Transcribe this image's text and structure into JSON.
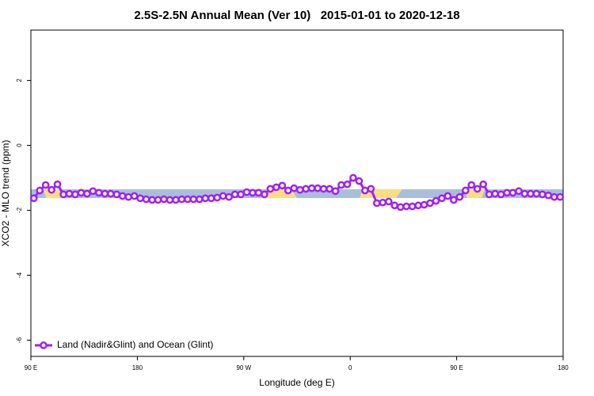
{
  "chart_data": {
    "type": "line",
    "title": "2.5S-2.5N Annual Mean (Ver 10)   2015-01-01 to 2020-12-18",
    "xlabel": "Longitude (deg E)",
    "ylabel": "XCO2 - MLO trend (ppm)",
    "xlim": [
      90,
      540
    ],
    "xticks": [
      {
        "value": 90,
        "label": "90 E"
      },
      180,
      {
        "value": 270,
        "label": "90 W"
      },
      {
        "value": 360,
        "label": "0"
      },
      {
        "value": 450,
        "label": "90 E"
      },
      {
        "value": 540,
        "label": "180"
      }
    ],
    "ylim": [
      -6.5,
      3.55
    ],
    "yticks": [
      -6,
      -4,
      -2,
      0,
      2
    ],
    "legend": "bottom-left",
    "x": [
      92.5,
      97.5,
      102.5,
      107.5,
      112.5,
      117.5,
      122.5,
      127.5,
      132.5,
      137.5,
      142.5,
      147.5,
      152.5,
      157.5,
      162.5,
      167.5,
      172.5,
      177.5,
      182.5,
      187.5,
      192.5,
      197.5,
      202.5,
      207.5,
      212.5,
      217.5,
      222.5,
      227.5,
      232.5,
      237.5,
      242.5,
      247.5,
      252.5,
      257.5,
      262.5,
      267.5,
      272.5,
      277.5,
      282.5,
      287.5,
      292.5,
      297.5,
      302.5,
      307.5,
      312.5,
      317.5,
      322.5,
      327.5,
      332.5,
      337.5,
      342.5,
      347.5,
      352.5,
      357.5,
      362.5,
      367.5,
      372.5,
      377.5,
      382.5,
      387.5,
      392.5,
      397.5,
      402.5,
      407.5,
      412.5,
      417.5,
      422.5,
      427.5,
      432.5,
      437.5,
      442.5,
      447.5,
      452.5,
      457.5,
      462.5,
      467.5,
      472.5,
      477.5,
      482.5,
      487.5,
      492.5,
      497.5,
      502.5,
      507.5,
      512.5,
      517.5,
      522.5,
      527.5,
      532.5,
      537.5
    ],
    "series": [
      {
        "name": "Land (Nadir&Glint) and Ocean (Glint)",
        "color": "#a020f0",
        "values": [
          -1.63,
          -1.39,
          -1.22,
          -1.37,
          -1.2,
          -1.51,
          -1.49,
          -1.51,
          -1.46,
          -1.49,
          -1.41,
          -1.46,
          -1.49,
          -1.49,
          -1.51,
          -1.56,
          -1.59,
          -1.56,
          -1.63,
          -1.66,
          -1.68,
          -1.68,
          -1.66,
          -1.68,
          -1.68,
          -1.66,
          -1.66,
          -1.66,
          -1.66,
          -1.63,
          -1.63,
          -1.61,
          -1.56,
          -1.59,
          -1.51,
          -1.51,
          -1.44,
          -1.46,
          -1.46,
          -1.51,
          -1.34,
          -1.29,
          -1.24,
          -1.39,
          -1.32,
          -1.37,
          -1.34,
          -1.32,
          -1.32,
          -1.34,
          -1.34,
          -1.41,
          -1.22,
          -1.2,
          -1.0,
          -1.1,
          -1.39,
          -1.34,
          -1.78,
          -1.76,
          -1.73,
          -1.85,
          -1.9,
          -1.88,
          -1.88,
          -1.85,
          -1.83,
          -1.78,
          -1.71,
          -1.63,
          -1.56,
          -1.68,
          -1.59,
          -1.39,
          -1.22,
          -1.34,
          -1.2,
          -1.51,
          -1.49,
          -1.51,
          -1.46,
          -1.46,
          -1.41,
          -1.49,
          -1.49,
          -1.49,
          -1.51,
          -1.54,
          -1.59,
          -1.59
        ]
      }
    ]
  }
}
